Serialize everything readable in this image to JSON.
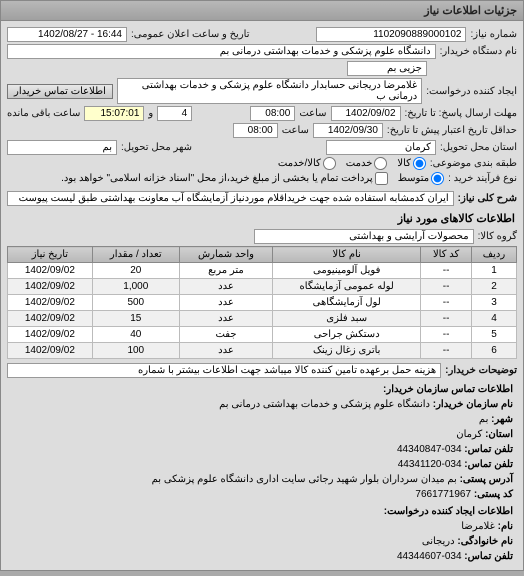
{
  "panel": {
    "title": "جزئیات اطلاعات نیاز"
  },
  "header": {
    "need_no_label": "شماره نیاز:",
    "need_no": "1102090889000102",
    "announce_label": "تاریخ و ساعت اعلان عمومی:",
    "announce_value": "16:44 - 1402/08/27",
    "buyer_org_label": "نام دستگاه خریدار:",
    "buyer_org": "دانشگاه علوم پزشکی و خدمات بهداشتی درمانی بم",
    "sub_org_label": "",
    "sub_org": "جزیی بم",
    "requester_label": "ایجاد کننده درخواست:",
    "requester": "غلامرضا دریجانی حسابدار دانشگاه علوم پزشکی و خدمات بهداشتی درمانی ب",
    "contact_btn": "اطلاعات تماس خریدار",
    "deadline_send_label": "مهلت ارسال پاسخ: تا تاریخ:",
    "deadline_send_date": "1402/09/02",
    "deadline_send_time_label": "ساعت",
    "deadline_send_time": "08:00",
    "remain_count": "4",
    "remain_count_suffix": "و",
    "remain_time": "15:07:01",
    "remain_suffix": "ساعت باقی مانده",
    "validity_label": "حداقل تاریخ اعتبار پیش تا تاریخ:",
    "validity_date": "1402/09/30",
    "validity_time_label": "ساعت",
    "validity_time": "08:00",
    "province_label": "استان محل تحویل:",
    "province": "کرمان",
    "city_label": "شهر محل تحویل:",
    "city": "بم",
    "priority_label": "طبقه بندی موضوعی:",
    "priority_opts": [
      "کالا",
      "خدمت",
      "کالا/خدمت"
    ],
    "priority_selected": 0,
    "process_label": "نوع فرآیند خرید :",
    "process_opts": [
      "متوسط",
      "پرداخت تمام یا بخشی از مبلغ خرید،از محل \"اسناد خزانه اسلامی\" خواهد بود."
    ],
    "process_selected": 0
  },
  "overview": {
    "label": "شرح کلی نیاز:",
    "text": "ایران کدمشابه استفاده شده جهت خریداقلام موردنیاز آزمایشگاه آب معاونت بهداشتی طبق لیست پیوست"
  },
  "goods": {
    "title": "اطلاعات کالاهای مورد نیاز",
    "group_label": "گروه کالا:",
    "group_value": "محصولات آرایشی و بهداشتی",
    "columns": [
      "ردیف",
      "کد کالا",
      "نام کالا",
      "واحد شمارش",
      "تعداد / مقدار",
      "تاریخ نیاز"
    ],
    "rows": [
      [
        "1",
        "--",
        "فویل آلومینیومی",
        "متر مربع",
        "20",
        "1402/09/02"
      ],
      [
        "2",
        "--",
        "لوله عمومی آزمایشگاه",
        "عدد",
        "1,000",
        "1402/09/02"
      ],
      [
        "3",
        "--",
        "لول آزمایشگاهی",
        "عدد",
        "500",
        "1402/09/02"
      ],
      [
        "4",
        "--",
        "سبد فلزی",
        "عدد",
        "15",
        "1402/09/02"
      ],
      [
        "5",
        "--",
        "دستکش جراحی",
        "جفت",
        "40",
        "1402/09/02"
      ],
      [
        "6",
        "--",
        "باتری زغال زینک",
        "عدد",
        "100",
        "1402/09/02"
      ]
    ]
  },
  "buyer_note": {
    "label": "توضیحات خریدار:",
    "text": "هزینه حمل برعهده تامین کننده کالا میباشد جهت اطلاعات بیشتر با شماره"
  },
  "contact": {
    "title": "اطلاعات تماس سازمان خریدار:",
    "org_label": "نام سازمان خریدار:",
    "org": "دانشگاه علوم پزشکی و خدمات بهداشتی درمانی بم",
    "city_label": "شهر:",
    "city": "بم",
    "province_label": "استان:",
    "province": "کرمان",
    "phone_label": "تلفن تماس:",
    "phone": "034-44340847",
    "fax_label": "تلفن تماس:",
    "fax": "034-44341120",
    "address_label": "آدرس پستی:",
    "address": "بم میدان سرداران بلوار شهید رجائی سایت اداری دانشگاه علوم پزشکی بم",
    "postal_label": "کد پستی:",
    "postal": "7661771967",
    "req_title": "اطلاعات ایجاد کننده درخواست:",
    "req_name_label": "نام:",
    "req_name": "غلامرضا",
    "req_family_label": "نام خانوادگی:",
    "req_family": "دریجانی",
    "req_phone_label": "تلفن تماس:",
    "req_phone": "034-44344607"
  }
}
